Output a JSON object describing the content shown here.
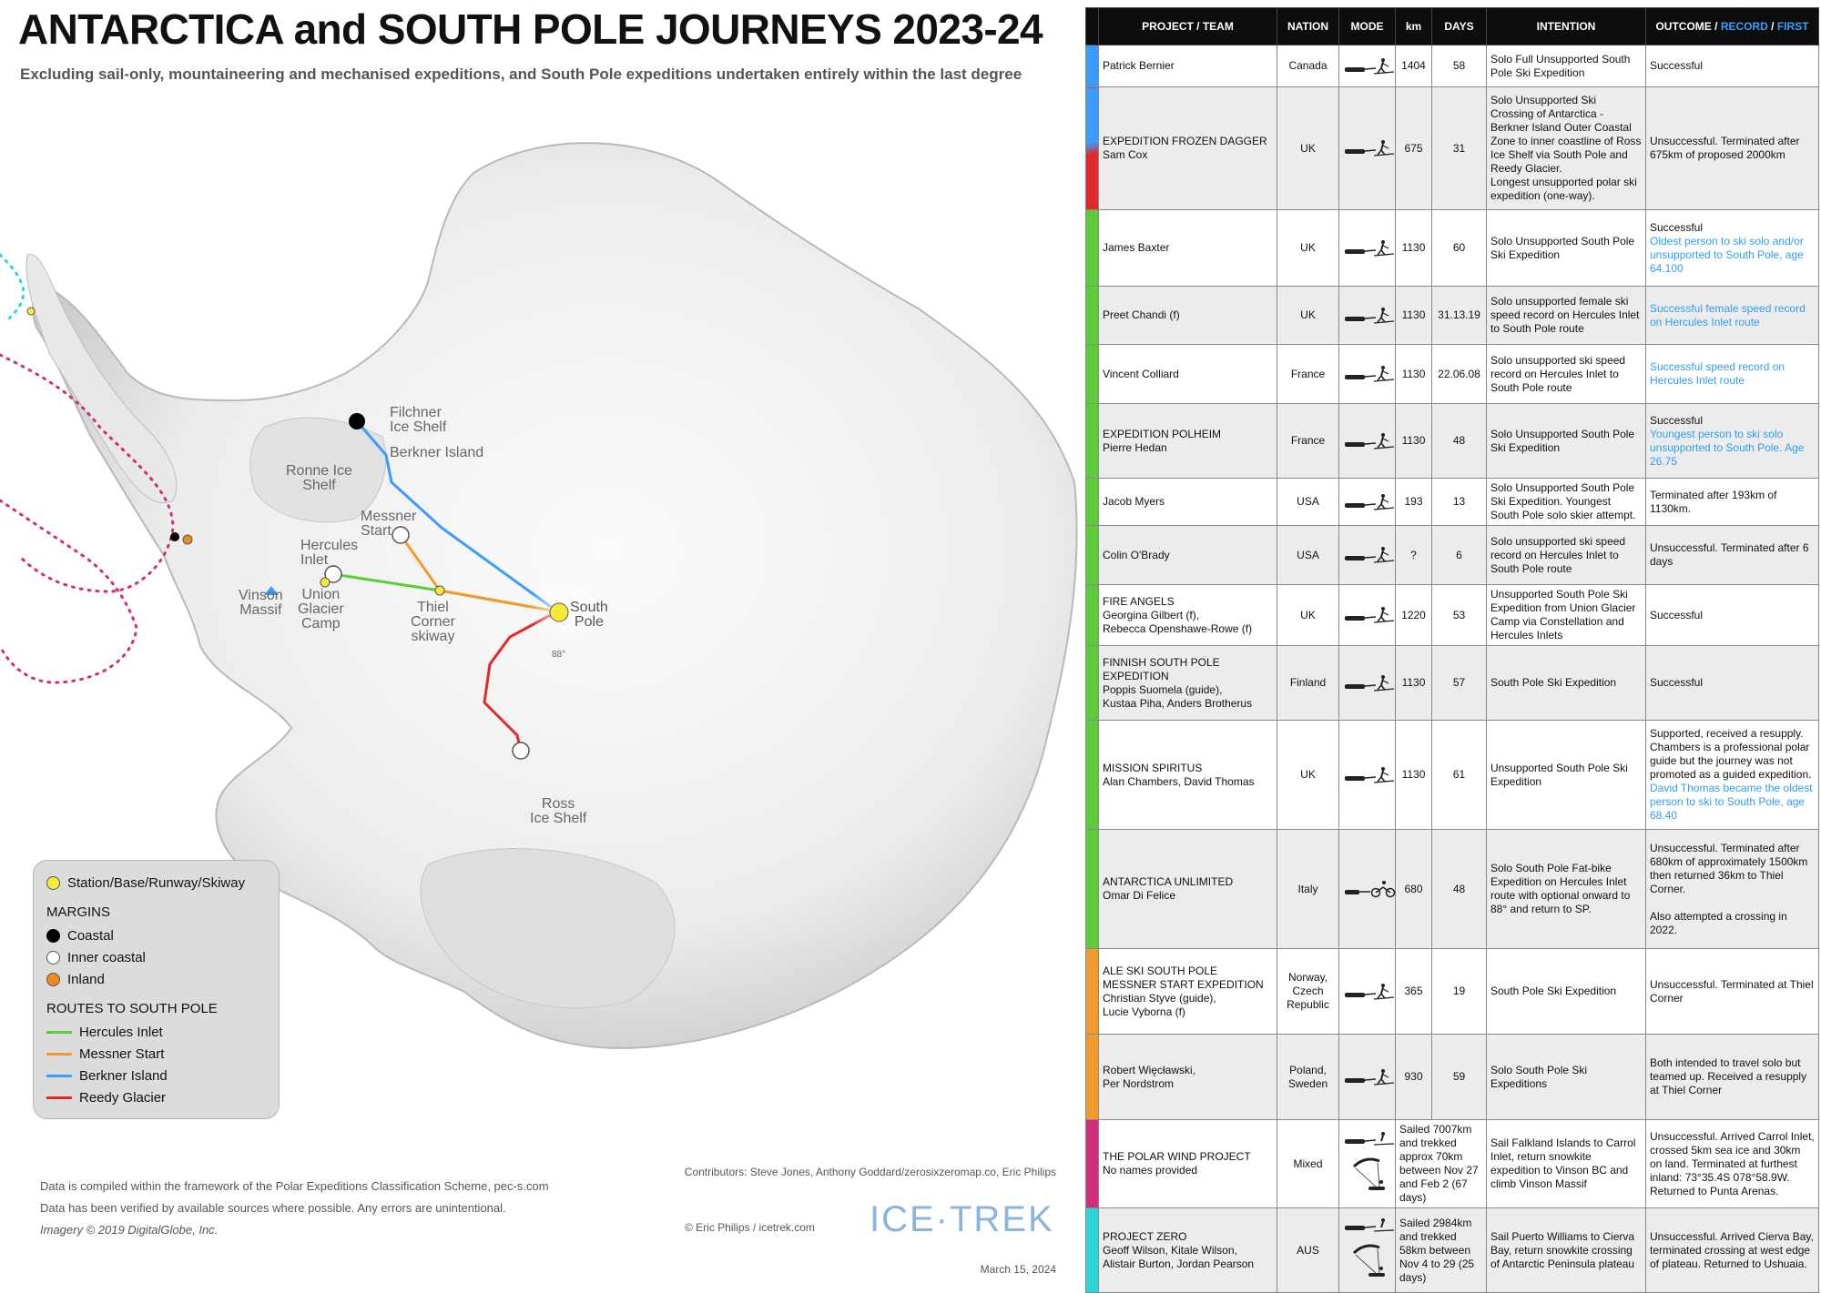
{
  "title": "ANTARCTICA and SOUTH POLE JOURNEYS 2023-24",
  "subtitle": "Excluding sail-only, mountaineering and mechanised expeditions, and South Pole expeditions undertaken entirely within the last degree",
  "map": {
    "labels": {
      "filchner": "Filchner\nIce Shelf",
      "berkner": "Berkner Island",
      "ronne": "Ronne Ice\nShelf",
      "messner": "Messner\nStart",
      "hercules": "Hercules\nInlet",
      "vinson": "Vinson\nMassif",
      "union": "Union\nGlacier\nCamp",
      "thiel": "Thiel\nCorner\nskiway",
      "south_pole": "South\nPole",
      "deg88": "88°",
      "ross": "Ross\nIce Shelf"
    }
  },
  "legend": {
    "station": "Station/Base/Runway/Skiway",
    "margins_heading": "MARGINS",
    "coastal": "Coastal",
    "inner_coastal": "Inner coastal",
    "inland": "Inland",
    "routes_heading": "ROUTES TO SOUTH POLE",
    "hercules": "Hercules Inlet",
    "messner": "Messner Start",
    "berkner": "Berkner Island",
    "reedy": "Reedy Glacier"
  },
  "colors": {
    "hercules": "#5ccc3a",
    "messner": "#f29a2e",
    "berkner": "#3b9cff",
    "reedy": "#e3282a",
    "station": "#f5ec3a",
    "inland": "#f08c1e",
    "mixed": "#d12d7a",
    "aus": "#2ad6d6"
  },
  "footer": {
    "pec": "Data is compiled within the framework of the Polar Expeditions Classification Scheme, pec-s.com",
    "verified": "Data has been verified by available sources where possible. Any errors are unintentional.",
    "imagery": "Imagery © 2019 DigitalGlobe, Inc.",
    "contributors": "Contributors: Steve Jones, Anthony Goddard/zerosixzeromap.co, Eric Philips",
    "credit": "© Eric Philips / icetrek.com",
    "logo": "ICE·TREK",
    "date": "March 15, 2024"
  },
  "table": {
    "headers": {
      "project": "PROJECT  / TEAM",
      "nation": "NATION",
      "mode": "MODE",
      "km": "km",
      "days": "DAYS",
      "intention": "INTENTION",
      "outcome_a": "OUTCOME / ",
      "outcome_b": "RECORD",
      "outcome_c": " / ",
      "outcome_d": "FIRST"
    },
    "rows": [
      {
        "bar": "#3b9cff",
        "project": "Patrick Bernier",
        "nation": "Canada",
        "mode": "ski",
        "km": "1404",
        "days": "58",
        "intention": "Solo Full Unsupported South Pole Ski Expedition",
        "outcome": "Successful",
        "record": "",
        "height": 46
      },
      {
        "bar": "split",
        "project": "EXPEDITION FROZEN DAGGER\nSam Cox",
        "nation": "UK",
        "mode": "ski",
        "km": "675",
        "days": "31",
        "intention": "Solo Unsupported Ski Crossing of Antarctica - Berkner Island Outer Coastal Zone to inner coastline of Ross Ice Shelf via South Pole and Reedy Glacier.\nLongest unsupported polar ski expedition (one-way).",
        "outcome": "Unsuccessful. Terminated after 675km of proposed 2000km",
        "record": "",
        "height": 135
      },
      {
        "bar": "#5ccc3a",
        "project": "James Baxter",
        "nation": "UK",
        "mode": "ski",
        "km": "1130",
        "days": "60",
        "intention": "Solo Unsupported South Pole Ski Expedition",
        "outcome": "Successful",
        "record": "Oldest person to ski solo and/or unsupported to South Pole, age 64.100",
        "height": 84
      },
      {
        "bar": "#5ccc3a",
        "project": "Preet Chandi (f)",
        "nation": "UK",
        "mode": "ski",
        "km": "1130",
        "days": "31.13.19",
        "intention": "Solo unsupported female ski speed record on Hercules Inlet to South Pole route",
        "outcome": "",
        "record": "Successful female speed record on Hercules Inlet route",
        "height": 64
      },
      {
        "bar": "#5ccc3a",
        "project": "Vincent Colliard",
        "nation": "France",
        "mode": "ski",
        "km": "1130",
        "days": "22.06.08",
        "intention": "Solo unsupported ski speed record on Hercules Inlet to South Pole route",
        "outcome": "",
        "record": "Successful speed record on Hercules Inlet route",
        "height": 65
      },
      {
        "bar": "#5ccc3a",
        "project": "EXPEDITION POLHEIM\nPierre Hedan",
        "nation": "France",
        "mode": "ski",
        "km": "1130",
        "days": "48",
        "intention": "Solo Unsupported South Pole Ski Expedition",
        "outcome": "Successful",
        "record": "Youngest person to ski solo unsupported to South Pole. Age 26.75",
        "height": 82
      },
      {
        "bar": "#5ccc3a",
        "project": "Jacob Myers",
        "nation": "USA",
        "mode": "ski",
        "km": "193",
        "days": "13",
        "intention": "Solo Unsupported South Pole Ski Expedition. Youngest South Pole solo skier attempt.",
        "outcome": "Terminated after 193km of 1130km.",
        "record": "",
        "height": 46
      },
      {
        "bar": "#5ccc3a",
        "project": "Colin O'Brady",
        "nation": "USA",
        "mode": "ski",
        "km": "?",
        "days": "6",
        "intention": "Solo unsupported ski speed record on Hercules Inlet to South Pole route",
        "outcome": "Unsuccessful. Terminated after 6 days",
        "record": "",
        "height": 65
      },
      {
        "bar": "#5ccc3a",
        "project": "FIRE ANGELS\nGeorgina Gilbert (f),\nRebecca Openshawe-Rowe (f)",
        "nation": "UK",
        "mode": "ski",
        "km": "1220",
        "days": "53",
        "intention": "Unsupported South Pole Ski Expedition from Union Glacier Camp via Constellation and Hercules Inlets",
        "outcome": "Successful",
        "record": "",
        "height": 65
      },
      {
        "bar": "#5ccc3a",
        "project": "FINNISH SOUTH POLE EXPEDITION\nPoppis Suomela (guide),\nKustaa Piha, Anders Brotherus",
        "nation": "Finland",
        "mode": "ski",
        "km": "1130",
        "days": "57",
        "intention": "South Pole Ski Expedition",
        "outcome": "Successful",
        "record": "",
        "height": 82
      },
      {
        "bar": "#5ccc3a",
        "project": "MISSION SPIRITUS\nAlan Chambers, David Thomas",
        "nation": "UK",
        "mode": "ski",
        "km": "1130",
        "days": "61",
        "intention": "Unsupported South Pole Ski Expedition",
        "outcome": "Supported, received a resupply. Chambers is a professional polar guide but the journey was not promoted as a guided expedition.",
        "record": "David Thomas became the oldest person to ski to South Pole, age 68.40",
        "height": 120
      },
      {
        "bar": "#5ccc3a",
        "project": "ANTARCTICA UNLIMITED\nOmar Di Felice",
        "nation": "Italy",
        "mode": "bike",
        "km": "680",
        "days": "48",
        "intention": "Solo South Pole Fat-bike Expedition on Hercules Inlet route with optional onward to 88° and return to SP.",
        "outcome": "Unsuccessful. Terminated after 680km of approximately 1500km then returned 36km to Thiel Corner.\n\nAlso attempted a crossing in 2022.",
        "record": "",
        "height": 131
      },
      {
        "bar": "#f29a2e",
        "project": "ALE SKI SOUTH POLE\nMESSNER START EXPEDITION\nChristian Styve (guide),\nLucie Vyborna (f)",
        "nation": "Norway,\nCzech\nRepublic",
        "mode": "ski",
        "km": "365",
        "days": "19",
        "intention": "South Pole Ski Expedition",
        "outcome": "Unsuccessful. Terminated at Thiel Corner",
        "record": "",
        "height": 94
      },
      {
        "bar": "#f29a2e",
        "project": "Robert Więcławski,\nPer Nordstrom",
        "nation": "Poland,\nSweden",
        "mode": "ski",
        "km": "930",
        "days": "59",
        "intention": "Solo South Pole Ski Expeditions",
        "outcome": "Both intended to travel solo but teamed up. Received a resupply at Thiel Corner",
        "record": "",
        "height": 94
      },
      {
        "bar": "#d12d7a",
        "project": "THE POLAR WIND PROJECT\nNo names provided",
        "nation": "Mixed",
        "mode": "kite",
        "km": "Sailed 7007km and trekked approx 70km between Nov 27 and Feb 2 (67 days)",
        "days": "",
        "intention": "Sail Falkland Islands to Carrol Inlet, return snowkite expedition to Vinson BC and climb Vinson Massif",
        "outcome": "Unsuccessful. Arrived Carrol Inlet, crossed 5km sea ice and 30km on land. Terminated at furthest inland: 73°35.4S 078°58.9W. Returned to Punta Arenas.",
        "record": "",
        "height": 93
      },
      {
        "bar": "#2ad6d6",
        "project": "PROJECT ZERO\nGeoff Wilson, Kitale Wilson,\nAlistair Burton, Jordan Pearson",
        "nation": "AUS",
        "mode": "kite",
        "km": "Sailed 2984km and trekked 58km between Nov 4 to 29 (25 days)",
        "days": "",
        "intention": "Sail Puerto Williams to Cierva Bay, return snowkite crossing of Antarctic Peninsula plateau",
        "outcome": "Unsuccessful. Arrived Cierva Bay, terminated crossing at west edge of plateau. Returned to Ushuaia.",
        "record": "",
        "height": 93
      }
    ]
  }
}
